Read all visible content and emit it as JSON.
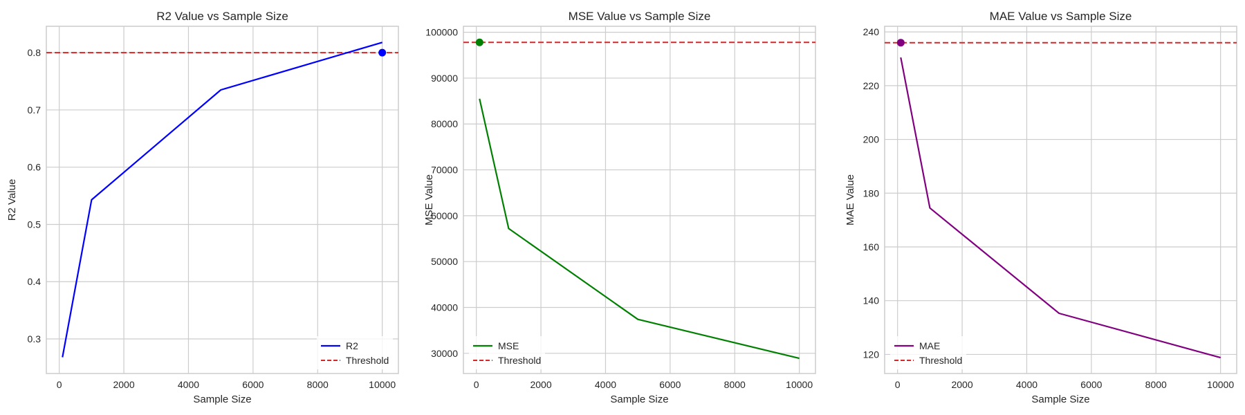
{
  "chart_data": [
    {
      "type": "line",
      "title": "R2 Value vs Sample Size",
      "xlabel": "Sample Size",
      "ylabel": "R2 Value",
      "xlim": [
        -400,
        10500
      ],
      "ylim": [
        0.2396,
        0.8461
      ],
      "xticks": [
        0,
        2000,
        4000,
        6000,
        8000,
        10000
      ],
      "yticks": [
        0.3,
        0.4,
        0.5,
        0.6,
        0.7,
        0.8
      ],
      "ytick_decimals": 1,
      "grid": true,
      "legend_position": "lower right",
      "x": [
        100,
        1000,
        5000,
        10000
      ],
      "series": [
        {
          "name": "R2",
          "values": [
            0.268,
            0.543,
            0.735,
            0.818
          ],
          "color": "#0000ff"
        }
      ],
      "threshold": {
        "name": "Threshold",
        "value": 0.8,
        "color": "#d62728"
      },
      "marker": {
        "x": 10000,
        "y": 0.8,
        "color": "#0000ff"
      }
    },
    {
      "type": "line",
      "title": "MSE Value vs Sample Size",
      "xlabel": "Sample Size",
      "ylabel": "MSE Value",
      "xlim": [
        -400,
        10500
      ],
      "ylim": [
        25600,
        101300
      ],
      "xticks": [
        0,
        2000,
        4000,
        6000,
        8000,
        10000
      ],
      "yticks": [
        30000,
        40000,
        50000,
        60000,
        70000,
        80000,
        90000,
        100000
      ],
      "ytick_decimals": 0,
      "grid": true,
      "legend_position": "lower left",
      "x": [
        100,
        1000,
        5000,
        10000
      ],
      "series": [
        {
          "name": "MSE",
          "values": [
            85500,
            57200,
            37400,
            28900
          ],
          "color": "#008000"
        }
      ],
      "threshold": {
        "name": "Threshold",
        "value": 97800,
        "color": "#d62728"
      },
      "marker": {
        "x": 100,
        "y": 97800,
        "color": "#008000"
      }
    },
    {
      "type": "line",
      "title": "MAE Value vs Sample Size",
      "xlabel": "Sample Size",
      "ylabel": "MAE Value",
      "xlim": [
        -400,
        10500
      ],
      "ylim": [
        112.9,
        242.1
      ],
      "xticks": [
        0,
        2000,
        4000,
        6000,
        8000,
        10000
      ],
      "yticks": [
        120,
        140,
        160,
        180,
        200,
        220,
        240
      ],
      "ytick_decimals": 0,
      "grid": true,
      "legend_position": "lower left",
      "x": [
        100,
        1000,
        5000,
        10000
      ],
      "series": [
        {
          "name": "MAE",
          "values": [
            230.5,
            174.5,
            135.3,
            118.8
          ],
          "color": "#800080"
        }
      ],
      "threshold": {
        "name": "Threshold",
        "value": 236.0,
        "color": "#d62728"
      },
      "marker": {
        "x": 100,
        "y": 236.0,
        "color": "#800080"
      }
    }
  ]
}
